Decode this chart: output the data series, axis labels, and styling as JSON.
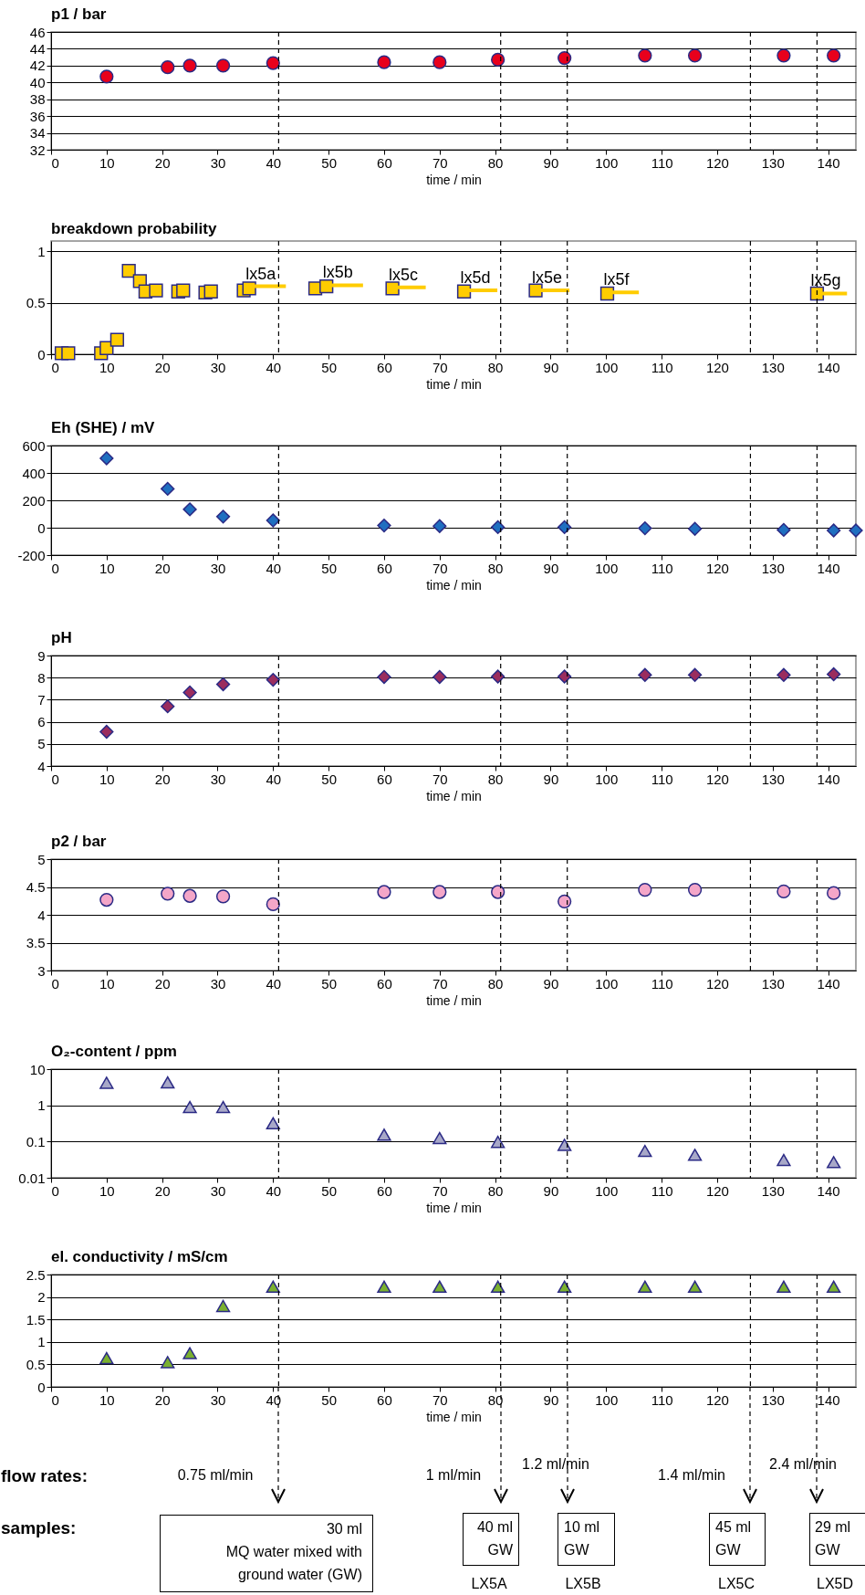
{
  "chart_data": [
    {
      "type": "scatter",
      "title": "p1 / bar",
      "xlabel": "time / min",
      "xlim": [
        0,
        145
      ],
      "xticks": [
        0,
        10,
        20,
        30,
        40,
        50,
        60,
        70,
        80,
        90,
        100,
        110,
        120,
        130,
        140
      ],
      "ylim": [
        32,
        46
      ],
      "yticks": [
        32,
        34,
        36,
        38,
        40,
        42,
        44,
        46
      ],
      "grid": "y",
      "marker": "circle",
      "x": [
        10,
        21,
        25,
        31,
        40,
        60,
        70,
        80.5,
        92.5,
        107,
        116,
        132,
        141
      ],
      "series": [
        {
          "color": "#e8001c",
          "values": [
            40.7,
            41.8,
            42.0,
            42.0,
            42.3,
            42.4,
            42.4,
            42.7,
            42.9,
            43.2,
            43.2,
            43.2,
            43.2
          ]
        }
      ],
      "ref_lines": [
        {
          "axis": "x",
          "value": 41,
          "line_style": "dashed"
        },
        {
          "axis": "x",
          "value": 81,
          "line_style": "dashed"
        },
        {
          "axis": "x",
          "value": 93,
          "line_style": "dashed"
        },
        {
          "axis": "x",
          "value": 126,
          "line_style": "dashed"
        },
        {
          "axis": "x",
          "value": 138,
          "line_style": "dashed"
        }
      ]
    },
    {
      "type": "scatter",
      "title": "breakdown probability",
      "xlabel": "time / min",
      "xlim": [
        0,
        145
      ],
      "xticks": [
        0,
        10,
        20,
        30,
        40,
        50,
        60,
        70,
        80,
        90,
        100,
        110,
        120,
        130,
        140
      ],
      "ylim": [
        0,
        1.1
      ],
      "yticks": [
        0,
        0.5,
        1
      ],
      "grid": "y",
      "marker": "square",
      "series": [
        {
          "color": "#ffcc00",
          "x": [
            1.9,
            3.1,
            9,
            10,
            11.9,
            14,
            16,
            17,
            18.9,
            22.9,
            23.8,
            27.8,
            28.8,
            34.7,
            35.7,
            47.6,
            49.6,
            61.5,
            74.4,
            87.3,
            100.2,
            138
          ],
          "values": [
            0.01,
            0.01,
            0.01,
            0.06,
            0.14,
            0.81,
            0.71,
            0.61,
            0.62,
            0.61,
            0.62,
            0.6,
            0.61,
            0.62,
            0.64,
            0.64,
            0.66,
            0.64,
            0.61,
            0.62,
            0.59,
            0.59
          ]
        },
        {
          "type": "line",
          "marker": "none",
          "color": "#ffcc00",
          "x": [
            35.7,
            42.3,
            46,
            49.6,
            56.2,
            59,
            61.5,
            67.5,
            71,
            74.4,
            80.4,
            84,
            87.3,
            93.4,
            97,
            100.2,
            105.9,
            120,
            137.5,
            143.4
          ],
          "values": [
            0.66,
            0.66,
            null,
            0.67,
            0.67,
            null,
            0.65,
            0.65,
            null,
            0.62,
            0.62,
            null,
            0.62,
            0.62,
            null,
            0.6,
            0.6,
            null,
            0.59,
            0.59
          ]
        }
      ],
      "annotations": [
        {
          "text": "lx5a",
          "x": 35.7,
          "y": 0.66
        },
        {
          "text": "lx5b",
          "x": 49.6,
          "y": 0.67
        },
        {
          "text": "lx5c",
          "x": 61.5,
          "y": 0.65
        },
        {
          "text": "lx5d",
          "x": 74.4,
          "y": 0.62
        },
        {
          "text": "lx5e",
          "x": 87.3,
          "y": 0.62
        },
        {
          "text": "lx5f",
          "x": 100.2,
          "y": 0.6
        },
        {
          "text": "lx5g",
          "x": 137.5,
          "y": 0.59
        }
      ],
      "ref_lines": [
        {
          "axis": "x",
          "value": 41,
          "line_style": "dashed"
        },
        {
          "axis": "x",
          "value": 81,
          "line_style": "dashed"
        },
        {
          "axis": "x",
          "value": 93,
          "line_style": "dashed"
        },
        {
          "axis": "x",
          "value": 126,
          "line_style": "dashed"
        },
        {
          "axis": "x",
          "value": 138,
          "line_style": "dashed"
        }
      ]
    },
    {
      "type": "scatter",
      "title": "Eh (SHE) / mV",
      "xlabel": "time / min",
      "xlim": [
        0,
        145
      ],
      "xticks": [
        0,
        10,
        20,
        30,
        40,
        50,
        60,
        70,
        80,
        90,
        100,
        110,
        120,
        130,
        140
      ],
      "ylim": [
        -200,
        600
      ],
      "yticks": [
        -200,
        0,
        200,
        400,
        600
      ],
      "grid": "y",
      "marker": "diamond",
      "x": [
        10,
        21,
        25,
        31,
        40,
        60,
        70,
        80.5,
        92.5,
        107,
        116,
        132,
        141,
        145
      ],
      "series": [
        {
          "color": "#1f6fc0",
          "values": [
            507,
            284,
            134,
            81,
            53,
            16,
            12,
            4,
            4,
            -4,
            -8,
            -16,
            -20,
            -20
          ]
        }
      ],
      "ref_lines": [
        {
          "axis": "x",
          "value": 41,
          "line_style": "dashed"
        },
        {
          "axis": "x",
          "value": 81,
          "line_style": "dashed"
        },
        {
          "axis": "x",
          "value": 93,
          "line_style": "dashed"
        },
        {
          "axis": "x",
          "value": 126,
          "line_style": "dashed"
        },
        {
          "axis": "x",
          "value": 138,
          "line_style": "dashed"
        }
      ]
    },
    {
      "type": "scatter",
      "title": "pH",
      "xlabel": "time / min",
      "xlim": [
        0,
        145
      ],
      "xticks": [
        0,
        10,
        20,
        30,
        40,
        50,
        60,
        70,
        80,
        90,
        100,
        110,
        120,
        130,
        140
      ],
      "ylim": [
        4,
        9
      ],
      "yticks": [
        4,
        5,
        6,
        7,
        8,
        9
      ],
      "grid": "y",
      "marker": "diamond",
      "x": [
        10,
        21,
        25,
        31,
        40,
        60,
        70,
        80.5,
        92.5,
        107,
        116,
        132,
        141
      ],
      "series": [
        {
          "color": "#9b2d5e",
          "values": [
            5.55,
            6.7,
            7.33,
            7.7,
            7.9,
            8.03,
            8.03,
            8.05,
            8.05,
            8.12,
            8.12,
            8.12,
            8.15
          ]
        }
      ],
      "ref_lines": [
        {
          "axis": "x",
          "value": 41,
          "line_style": "dashed"
        },
        {
          "axis": "x",
          "value": 81,
          "line_style": "dashed"
        },
        {
          "axis": "x",
          "value": 93,
          "line_style": "dashed"
        },
        {
          "axis": "x",
          "value": 126,
          "line_style": "dashed"
        },
        {
          "axis": "x",
          "value": 138,
          "line_style": "dashed"
        }
      ]
    },
    {
      "type": "scatter",
      "title": "p2 / bar",
      "xlabel": "time / min",
      "xlim": [
        0,
        145
      ],
      "xticks": [
        0,
        10,
        20,
        30,
        40,
        50,
        60,
        70,
        80,
        90,
        100,
        110,
        120,
        130,
        140
      ],
      "ylim": [
        3,
        5
      ],
      "yticks": [
        3,
        3.5,
        4,
        4.5,
        5
      ],
      "grid": "y",
      "marker": "circle",
      "x": [
        10,
        21,
        25,
        31,
        40,
        60,
        70,
        80.5,
        92.5,
        107,
        116,
        132,
        141
      ],
      "series": [
        {
          "color": "#f4a6c8",
          "values": [
            4.27,
            4.38,
            4.34,
            4.33,
            4.19,
            4.41,
            4.41,
            4.41,
            4.24,
            4.45,
            4.45,
            4.42,
            4.39
          ]
        }
      ],
      "ref_lines": [
        {
          "axis": "x",
          "value": 41,
          "line_style": "dashed"
        },
        {
          "axis": "x",
          "value": 81,
          "line_style": "dashed"
        },
        {
          "axis": "x",
          "value": 93,
          "line_style": "dashed"
        },
        {
          "axis": "x",
          "value": 126,
          "line_style": "dashed"
        },
        {
          "axis": "x",
          "value": 138,
          "line_style": "dashed"
        }
      ]
    },
    {
      "type": "scatter",
      "title": "O₂-content / ppm",
      "xlabel": "time / min",
      "xlim": [
        0,
        145
      ],
      "xticks": [
        0,
        10,
        20,
        30,
        40,
        50,
        60,
        70,
        80,
        90,
        100,
        110,
        120,
        130,
        140
      ],
      "ylim": [
        0.01,
        10
      ],
      "yticks": [
        0.01,
        0.1,
        1,
        10
      ],
      "log": "y",
      "grid": "y",
      "marker": "triangle",
      "x": [
        10,
        21,
        25,
        31,
        40,
        60,
        70,
        80.5,
        92.5,
        107,
        116,
        132,
        141
      ],
      "series": [
        {
          "color": "#a8a8c8",
          "values": [
            4.2,
            4.3,
            0.9,
            0.9,
            0.32,
            0.155,
            0.125,
            0.098,
            0.081,
            0.055,
            0.043,
            0.031,
            0.027
          ]
        }
      ],
      "ref_lines": [
        {
          "axis": "x",
          "value": 41,
          "line_style": "dashed"
        },
        {
          "axis": "x",
          "value": 81,
          "line_style": "dashed"
        },
        {
          "axis": "x",
          "value": 93,
          "line_style": "dashed"
        },
        {
          "axis": "x",
          "value": 126,
          "line_style": "dashed"
        },
        {
          "axis": "x",
          "value": 138,
          "line_style": "dashed"
        }
      ]
    },
    {
      "type": "scatter",
      "title": "el. conductivity / mS/cm",
      "xlabel": "time / min",
      "xlim": [
        0,
        145
      ],
      "xticks": [
        0,
        10,
        20,
        30,
        40,
        50,
        60,
        70,
        80,
        90,
        100,
        110,
        120,
        130,
        140
      ],
      "ylim": [
        0,
        2.5
      ],
      "yticks": [
        0,
        0.5,
        1,
        1.5,
        2,
        2.5
      ],
      "grid": "y",
      "marker": "triangle",
      "x": [
        10,
        21,
        25,
        31,
        40,
        60,
        70,
        80.5,
        92.5,
        107,
        116,
        132,
        141
      ],
      "series": [
        {
          "color": "#7ab030",
          "values": [
            0.64,
            0.55,
            0.75,
            1.8,
            2.23,
            2.23,
            2.23,
            2.23,
            2.23,
            2.23,
            2.23,
            2.23,
            2.23
          ]
        }
      ],
      "ref_lines": [
        {
          "axis": "x",
          "value": 41,
          "line_style": "dashed"
        },
        {
          "axis": "x",
          "value": 81,
          "line_style": "dashed"
        },
        {
          "axis": "x",
          "value": 93,
          "line_style": "dashed"
        },
        {
          "axis": "x",
          "value": 126,
          "line_style": "dashed"
        },
        {
          "axis": "x",
          "value": 138,
          "line_style": "dashed"
        }
      ],
      "annotations": [
        "flow rates:",
        "0.75 ml/min",
        "1 ml/min",
        "1.2 ml/min",
        "1.4 ml/min",
        "2.4 ml/min",
        "samples:",
        "30 ml",
        "MQ water mixed with",
        "ground water (GW)",
        "40 ml",
        "GW",
        "10 ml",
        "GW",
        "45 ml",
        "GW",
        "29 ml",
        "GW",
        "LX5A",
        "LX5B",
        "LX5C",
        "LX5D"
      ]
    }
  ]
}
